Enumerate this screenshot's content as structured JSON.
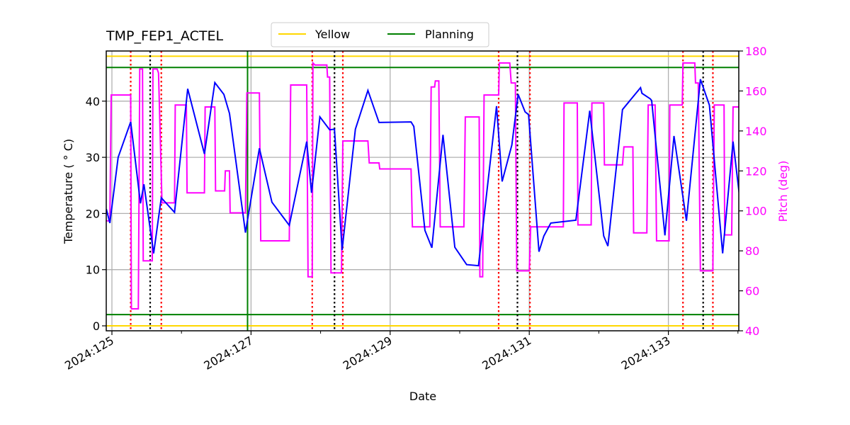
{
  "chart_data": {
    "type": "line",
    "title": "TMP_FEP1_ACTEL",
    "xlabel": "Date",
    "ylabel": "Temperature ($^\\circ$C)",
    "ylabel_display": "Temperature ( ° C)",
    "y2label": "Pitch (deg)",
    "xlim": [
      124.92,
      134.02
    ],
    "ylim": [
      -1,
      49
    ],
    "y2lim": [
      40,
      180
    ],
    "x_ticks": [
      {
        "value": 125,
        "label": "2024:125"
      },
      {
        "value": 127,
        "label": "2024:127"
      },
      {
        "value": 129,
        "label": "2024:129"
      },
      {
        "value": 131,
        "label": "2024:131"
      },
      {
        "value": 133,
        "label": "2024:133"
      }
    ],
    "x_minor_ticks": [
      126,
      128,
      130,
      132,
      134
    ],
    "y_ticks": [
      0,
      10,
      20,
      30,
      40
    ],
    "y2_ticks": [
      40,
      60,
      80,
      100,
      120,
      140,
      160,
      180
    ],
    "grid": true,
    "legend": {
      "position": "upper center, above axes",
      "entries": [
        {
          "label": "Yellow",
          "color": "#ffd700"
        },
        {
          "label": "Planning",
          "color": "#008000"
        }
      ]
    },
    "limit_lines": [
      {
        "name": "Yellow high",
        "value": 48,
        "color": "#ffd700"
      },
      {
        "name": "Yellow low",
        "value": 0,
        "color": "#ffd700"
      },
      {
        "name": "Planning high",
        "value": 46,
        "color": "#008000"
      },
      {
        "name": "Planning low",
        "value": 2,
        "color": "#008000"
      }
    ],
    "planning_vline": {
      "x": 126.95,
      "color": "#008000"
    },
    "red_dotted_vlines": [
      125.27,
      125.71,
      127.88,
      128.32,
      130.56,
      131.01,
      133.21,
      133.64
    ],
    "black_dotted_vlines": [
      125.55,
      128.2,
      130.83,
      133.5
    ],
    "series": [
      {
        "name": "TMP_FEP1_ACTEL",
        "axis": "left",
        "color": "#0000ff",
        "points": [
          [
            124.92,
            20.8
          ],
          [
            124.97,
            18.3
          ],
          [
            125.09,
            30.0
          ],
          [
            125.27,
            36.3
          ],
          [
            125.41,
            21.8
          ],
          [
            125.46,
            25.2
          ],
          [
            125.6,
            12.9
          ],
          [
            125.71,
            22.8
          ],
          [
            125.9,
            20.2
          ],
          [
            126.09,
            42.2
          ],
          [
            126.33,
            30.6
          ],
          [
            126.48,
            43.3
          ],
          [
            126.61,
            41.2
          ],
          [
            126.69,
            37.8
          ],
          [
            126.92,
            16.6
          ],
          [
            127.12,
            31.6
          ],
          [
            127.3,
            22.0
          ],
          [
            127.55,
            17.9
          ],
          [
            127.8,
            32.8
          ],
          [
            127.87,
            23.7
          ],
          [
            127.99,
            37.2
          ],
          [
            128.13,
            34.9
          ],
          [
            128.2,
            35.0
          ],
          [
            128.31,
            13.5
          ],
          [
            128.5,
            35.0
          ],
          [
            128.68,
            41.9
          ],
          [
            128.84,
            36.2
          ],
          [
            129.3,
            36.3
          ],
          [
            129.34,
            35.5
          ],
          [
            129.5,
            17.0
          ],
          [
            129.6,
            13.9
          ],
          [
            129.76,
            34.0
          ],
          [
            129.93,
            14.0
          ],
          [
            130.1,
            10.9
          ],
          [
            130.27,
            10.7
          ],
          [
            130.53,
            39.1
          ],
          [
            130.61,
            25.7
          ],
          [
            130.75,
            32.2
          ],
          [
            130.84,
            41.2
          ],
          [
            130.94,
            38.1
          ],
          [
            130.99,
            37.6
          ],
          [
            131.14,
            13.2
          ],
          [
            131.21,
            16.0
          ],
          [
            131.31,
            18.3
          ],
          [
            131.67,
            18.8
          ],
          [
            131.87,
            38.3
          ],
          [
            132.07,
            16.0
          ],
          [
            132.13,
            14.2
          ],
          [
            132.34,
            38.5
          ],
          [
            132.6,
            42.4
          ],
          [
            132.62,
            41.4
          ],
          [
            132.74,
            40.4
          ],
          [
            132.76,
            40.1
          ],
          [
            132.95,
            16.1
          ],
          [
            133.08,
            33.8
          ],
          [
            133.26,
            18.7
          ],
          [
            133.46,
            43.9
          ],
          [
            133.59,
            39.3
          ],
          [
            133.78,
            12.9
          ],
          [
            133.93,
            32.8
          ],
          [
            134.04,
            21.3
          ],
          [
            134.15,
            34.9
          ]
        ]
      },
      {
        "name": "Pitch",
        "axis": "right",
        "color": "#ff00ff",
        "points": [
          [
            124.92,
            95
          ],
          [
            124.97,
            95
          ],
          [
            124.99,
            158
          ],
          [
            125.27,
            158
          ],
          [
            125.28,
            51
          ],
          [
            125.38,
            51
          ],
          [
            125.4,
            171
          ],
          [
            125.44,
            171
          ],
          [
            125.45,
            75
          ],
          [
            125.58,
            75
          ],
          [
            125.59,
            171
          ],
          [
            125.65,
            171
          ],
          [
            125.67,
            169
          ],
          [
            125.72,
            104
          ],
          [
            125.9,
            104
          ],
          [
            125.91,
            153
          ],
          [
            126.07,
            153
          ],
          [
            126.08,
            109
          ],
          [
            126.33,
            109
          ],
          [
            126.34,
            152
          ],
          [
            126.48,
            152
          ],
          [
            126.49,
            110
          ],
          [
            126.62,
            110
          ],
          [
            126.63,
            120
          ],
          [
            126.69,
            120
          ],
          [
            126.7,
            99
          ],
          [
            126.92,
            99
          ],
          [
            126.94,
            159
          ],
          [
            127.12,
            159
          ],
          [
            127.14,
            85
          ],
          [
            127.55,
            85
          ],
          [
            127.57,
            163
          ],
          [
            127.8,
            163
          ],
          [
            127.82,
            67
          ],
          [
            127.88,
            67
          ],
          [
            127.89,
            174
          ],
          [
            127.92,
            173
          ],
          [
            128.09,
            173
          ],
          [
            128.1,
            167
          ],
          [
            128.13,
            167
          ],
          [
            128.15,
            69
          ],
          [
            128.3,
            69
          ],
          [
            128.32,
            135
          ],
          [
            128.68,
            135
          ],
          [
            128.7,
            124
          ],
          [
            128.84,
            124
          ],
          [
            128.85,
            121
          ],
          [
            129.3,
            121
          ],
          [
            129.32,
            92
          ],
          [
            129.57,
            92
          ],
          [
            129.59,
            162
          ],
          [
            129.64,
            162
          ],
          [
            129.65,
            165
          ],
          [
            129.7,
            165
          ],
          [
            129.72,
            92
          ],
          [
            130.06,
            92
          ],
          [
            130.08,
            147
          ],
          [
            130.28,
            147
          ],
          [
            130.29,
            67
          ],
          [
            130.33,
            67
          ],
          [
            130.35,
            158
          ],
          [
            130.56,
            158
          ],
          [
            130.57,
            174
          ],
          [
            130.72,
            174
          ],
          [
            130.74,
            164
          ],
          [
            130.8,
            164
          ],
          [
            130.82,
            70
          ],
          [
            131.0,
            70
          ],
          [
            131.02,
            92
          ],
          [
            131.49,
            92
          ],
          [
            131.5,
            154
          ],
          [
            131.69,
            154
          ],
          [
            131.7,
            93
          ],
          [
            131.89,
            93
          ],
          [
            131.9,
            154
          ],
          [
            132.07,
            154
          ],
          [
            132.08,
            123
          ],
          [
            132.34,
            123
          ],
          [
            132.36,
            132
          ],
          [
            132.49,
            132
          ],
          [
            132.5,
            89
          ],
          [
            132.69,
            89
          ],
          [
            132.71,
            153
          ],
          [
            132.81,
            153
          ],
          [
            132.83,
            85
          ],
          [
            133.01,
            85
          ],
          [
            133.02,
            153
          ],
          [
            133.2,
            153
          ],
          [
            133.21,
            174
          ],
          [
            133.38,
            174
          ],
          [
            133.39,
            164
          ],
          [
            133.43,
            164
          ],
          [
            133.46,
            70
          ],
          [
            133.64,
            70
          ],
          [
            133.66,
            153
          ],
          [
            133.8,
            153
          ],
          [
            133.81,
            88
          ],
          [
            133.91,
            88
          ],
          [
            133.93,
            152
          ],
          [
            134.02,
            152
          ]
        ]
      }
    ]
  }
}
